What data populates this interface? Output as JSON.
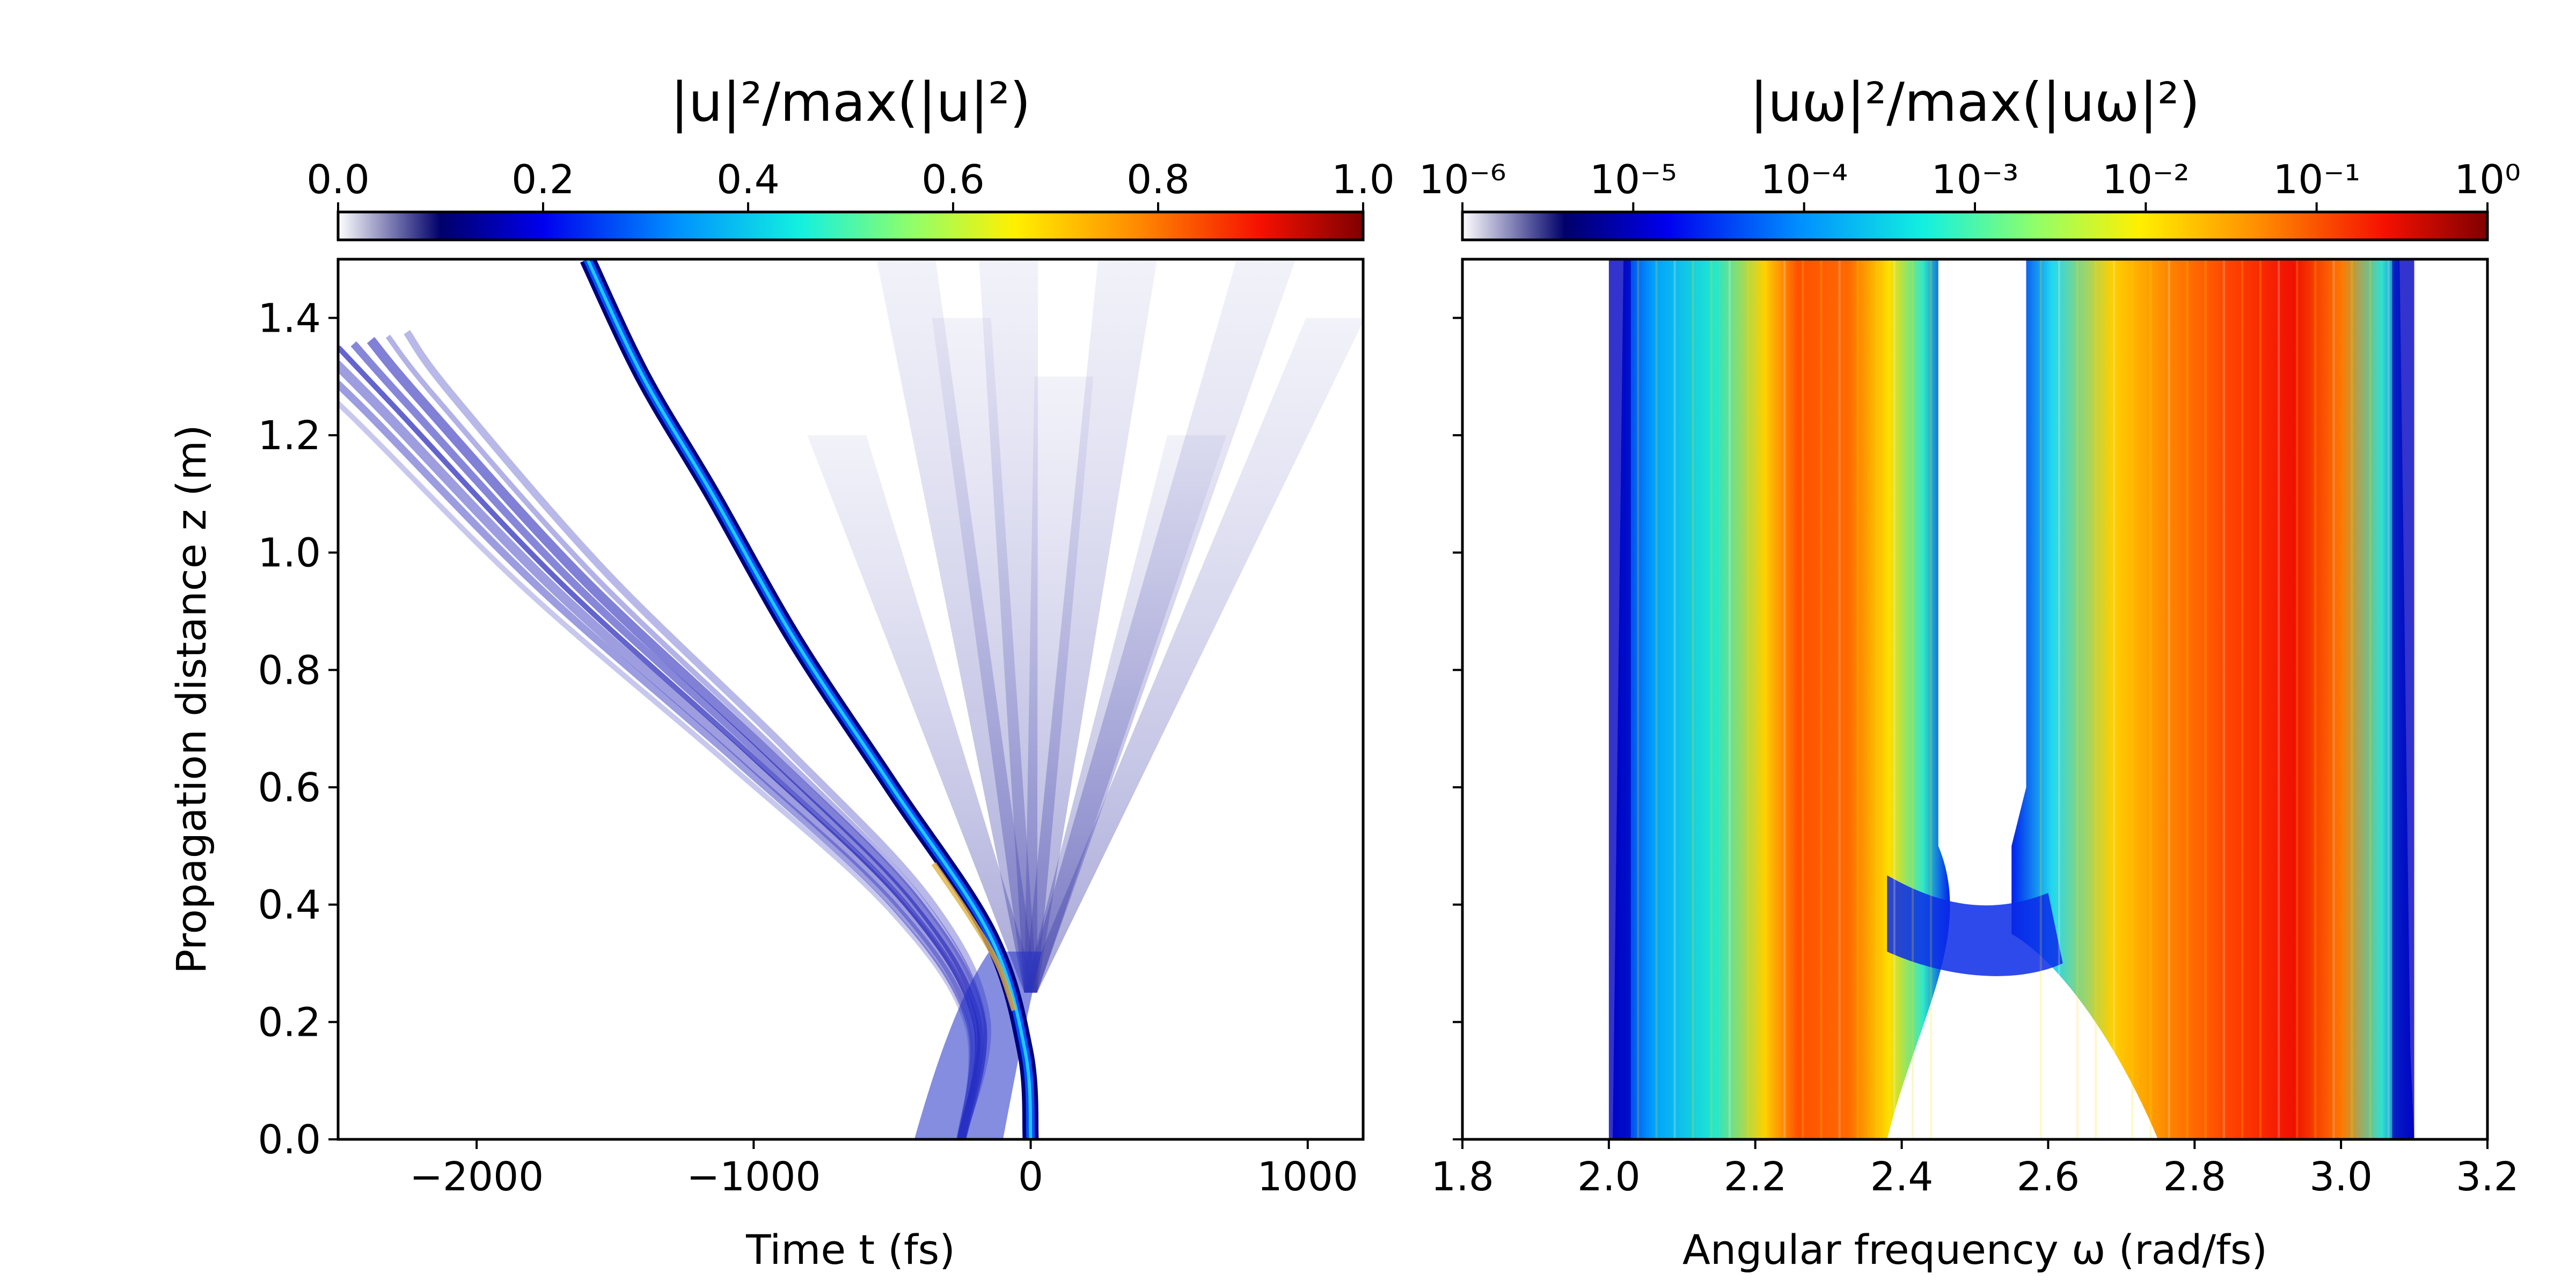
{
  "chart_data": [
    {
      "type": "heatmap",
      "panel": "time-domain",
      "colorbar": {
        "label": "|u|²/max(|u|²)",
        "scale": "linear",
        "range": [
          0.0,
          1.0
        ],
        "ticks": [
          0.0,
          0.2,
          0.4,
          0.6,
          0.8,
          1.0
        ],
        "tick_labels": [
          "0.0",
          "0.2",
          "0.4",
          "0.6",
          "0.8",
          "1.0"
        ],
        "colormap": "white-to-jet"
      },
      "xlabel": "Time t (fs)",
      "ylabel": "Propagation distance z (m)",
      "xlim": [
        -2500,
        1200
      ],
      "ylim": [
        0.0,
        1.5
      ],
      "xticks": [
        -2000,
        -1000,
        0,
        1000
      ],
      "xtick_labels": [
        "−2000",
        "−1000",
        "0",
        "1000"
      ],
      "yticks": [
        0.0,
        0.2,
        0.4,
        0.6,
        0.8,
        1.0,
        1.2,
        1.4
      ],
      "ytick_labels": [
        "0.0",
        "0.2",
        "0.4",
        "0.6",
        "0.8",
        "1.0",
        "1.2",
        "1.4"
      ],
      "features": [
        {
          "kind": "main-soliton-trace",
          "points": [
            [
              0,
              0.0
            ],
            [
              -20,
              0.15
            ],
            [
              -150,
              0.35
            ],
            [
              -500,
              0.6
            ],
            [
              -850,
              0.85
            ],
            [
              -1150,
              1.1
            ],
            [
              -1400,
              1.3
            ],
            [
              -1600,
              1.5
            ]
          ],
          "peak": 0.95
        },
        {
          "kind": "secondary-soliton-bundle",
          "points": [
            [
              -250,
              0.0
            ],
            [
              -200,
              0.2
            ],
            [
              -450,
              0.4
            ],
            [
              -1000,
              0.65
            ],
            [
              -1700,
              0.95
            ],
            [
              -2300,
              1.25
            ],
            [
              -2500,
              1.35
            ]
          ],
          "peak": 0.35
        },
        {
          "kind": "dispersive-fan",
          "origin": [
            0,
            0.25
          ],
          "extent_t": [
            -700,
            1100
          ],
          "peak": 0.05
        }
      ]
    },
    {
      "type": "heatmap",
      "panel": "frequency-domain",
      "colorbar": {
        "label": "|uω|²/max(|uω|²)",
        "scale": "log",
        "range": [
          1e-06,
          1
        ],
        "ticks": [
          1e-06,
          1e-05,
          0.0001,
          0.001,
          0.01,
          0.1,
          1
        ],
        "tick_labels": [
          "10⁻⁶",
          "10⁻⁵",
          "10⁻⁴",
          "10⁻³",
          "10⁻²",
          "10⁻¹",
          "10⁰"
        ],
        "colormap": "white-to-jet"
      },
      "xlabel": "Angular frequency ω (rad/fs)",
      "ylabel": "",
      "xlim": [
        1.8,
        3.2
      ],
      "ylim": [
        0.0,
        1.5
      ],
      "xticks": [
        1.8,
        2.0,
        2.2,
        2.4,
        2.6,
        2.8,
        3.0,
        3.2
      ],
      "xtick_labels": [
        "1.8",
        "2.0",
        "2.2",
        "2.4",
        "2.6",
        "2.8",
        "3.0",
        "3.2"
      ],
      "yticks": [
        0.0,
        0.2,
        0.4,
        0.6,
        0.8,
        1.0,
        1.2,
        1.4
      ],
      "features": [
        {
          "kind": "red-shifted-band",
          "omega_range": [
            2.02,
            2.45
          ],
          "core_omega": [
            2.23,
            2.35
          ],
          "z_range": [
            0.0,
            1.5
          ]
        },
        {
          "kind": "blue-shifted-band",
          "omega_range": [
            2.57,
            3.08
          ],
          "core_omega": [
            2.82,
            3.0
          ],
          "z_range": [
            0.0,
            1.5
          ]
        },
        {
          "kind": "gap",
          "omega_range": [
            2.45,
            2.57
          ],
          "z_from": 0.45
        }
      ]
    }
  ]
}
